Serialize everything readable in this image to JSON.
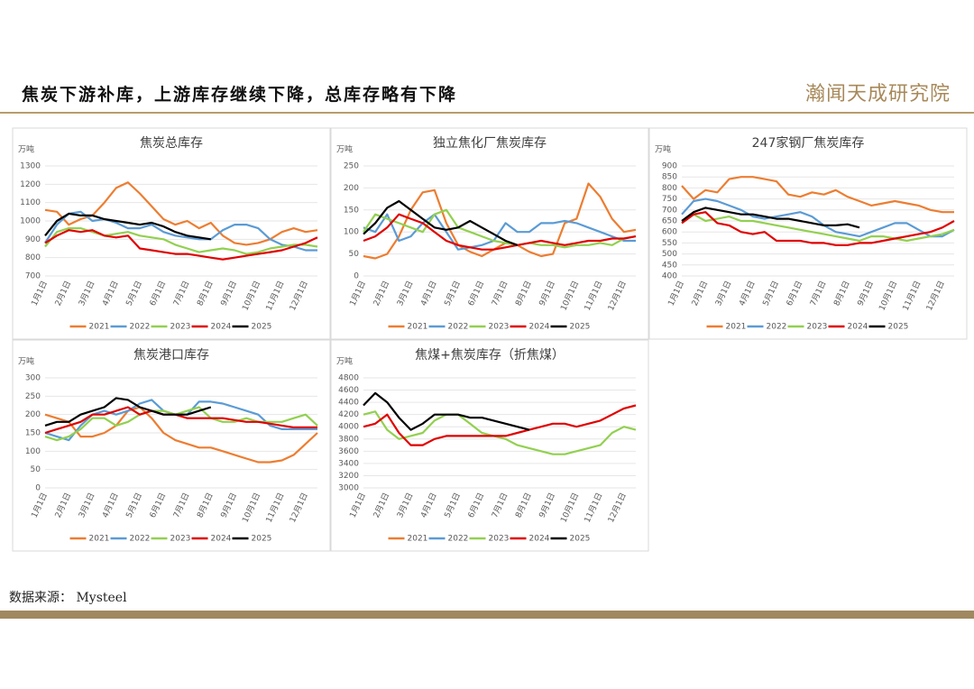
{
  "header": {
    "title": "焦炭下游补库，上游库存继续下降，总库存略有下降",
    "logo": "瀚闻天成研究院"
  },
  "source": "数据来源： Mysteel",
  "chart_data": [
    {
      "type": "line",
      "title": "焦炭总库存",
      "y_unit": "万吨",
      "categories": [
        "1月1日",
        null,
        "2月1日",
        null,
        "3月1日",
        null,
        "4月1日",
        null,
        "5月1日",
        null,
        "6月1日",
        null,
        "7月1日",
        null,
        "8月1日",
        null,
        "9月1日",
        null,
        "10月1日",
        null,
        "11月1日",
        null,
        "12月1日",
        null
      ],
      "ylim": [
        700,
        1300
      ],
      "yticks": [
        700,
        800,
        900,
        1000,
        1100,
        1200,
        1300
      ],
      "series": [
        {
          "name": "2021",
          "color": "#ed7d31",
          "values": [
            1060,
            1050,
            980,
            1010,
            1030,
            1100,
            1180,
            1210,
            1150,
            1080,
            1010,
            980,
            1000,
            960,
            990,
            920,
            880,
            870,
            880,
            900,
            940,
            960,
            940,
            950
          ]
        },
        {
          "name": "2022",
          "color": "#5b9bd5",
          "values": [
            880,
            980,
            1040,
            1050,
            1000,
            1010,
            990,
            960,
            960,
            980,
            940,
            920,
            910,
            900,
            900,
            950,
            980,
            980,
            960,
            900,
            870,
            860,
            840,
            840
          ]
        },
        {
          "name": "2023",
          "color": "#92d050",
          "values": [
            860,
            940,
            960,
            960,
            940,
            920,
            930,
            940,
            920,
            910,
            900,
            870,
            850,
            830,
            840,
            850,
            840,
            820,
            830,
            850,
            860,
            870,
            870,
            860
          ]
        },
        {
          "name": "2024",
          "color": "#e00000",
          "values": [
            880,
            920,
            950,
            940,
            950,
            920,
            910,
            920,
            850,
            840,
            830,
            820,
            820,
            810,
            800,
            790,
            800,
            810,
            820,
            830,
            840,
            860,
            880,
            910
          ]
        },
        {
          "name": "2025",
          "color": "#000000",
          "values": [
            920,
            1000,
            1040,
            1030,
            1030,
            1010,
            1000,
            990,
            980,
            990,
            970,
            940,
            920,
            910,
            900,
            null,
            null,
            null,
            null,
            null,
            null,
            null,
            null,
            null
          ]
        }
      ]
    },
    {
      "type": "line",
      "title": "独立焦化厂焦炭库存",
      "y_unit": "万吨",
      "categories": [
        "1月1日",
        null,
        "2月1日",
        null,
        "3月1日",
        null,
        "4月1日",
        null,
        "5月1日",
        null,
        "6月1日",
        null,
        "7月1日",
        null,
        "8月1日",
        null,
        "9月1日",
        null,
        "10月1日",
        null,
        "11月1日",
        null,
        "12月1日",
        null
      ],
      "ylim": [
        0,
        250
      ],
      "yticks": [
        0,
        50,
        100,
        150,
        200,
        250
      ],
      "series": [
        {
          "name": "2021",
          "color": "#ed7d31",
          "values": [
            45,
            40,
            50,
            90,
            150,
            190,
            195,
            120,
            70,
            55,
            45,
            60,
            75,
            70,
            55,
            45,
            50,
            120,
            130,
            210,
            180,
            130,
            100,
            105
          ]
        },
        {
          "name": "2022",
          "color": "#5b9bd5",
          "values": [
            110,
            100,
            140,
            80,
            90,
            120,
            140,
            100,
            60,
            65,
            70,
            80,
            120,
            100,
            100,
            120,
            120,
            125,
            120,
            110,
            100,
            90,
            80,
            80
          ]
        },
        {
          "name": "2023",
          "color": "#92d050",
          "values": [
            100,
            140,
            130,
            120,
            110,
            100,
            140,
            150,
            110,
            100,
            90,
            80,
            75,
            70,
            75,
            70,
            70,
            65,
            70,
            70,
            75,
            70,
            85,
            90
          ]
        },
        {
          "name": "2024",
          "color": "#e00000",
          "values": [
            80,
            90,
            110,
            140,
            130,
            120,
            100,
            80,
            70,
            65,
            60,
            60,
            65,
            70,
            75,
            80,
            75,
            70,
            75,
            80,
            80,
            85,
            85,
            90
          ]
        },
        {
          "name": "2025",
          "color": "#000000",
          "values": [
            95,
            120,
            155,
            170,
            150,
            130,
            110,
            105,
            110,
            125,
            110,
            95,
            80,
            70,
            null,
            null,
            null,
            null,
            null,
            null,
            null,
            null,
            null,
            null
          ]
        }
      ]
    },
    {
      "type": "line",
      "title": "247家钢厂焦炭库存",
      "y_unit": "万吨",
      "categories": [
        "1月1日",
        null,
        "2月1日",
        null,
        "3月1日",
        null,
        "4月1日",
        null,
        "5月1日",
        null,
        "6月1日",
        null,
        "7月1日",
        null,
        "8月1日",
        null,
        "9月1日",
        null,
        "10月1日",
        null,
        "11月1日",
        null,
        "12月1日",
        null
      ],
      "ylim": [
        400,
        900
      ],
      "yticks": [
        400,
        450,
        500,
        550,
        600,
        650,
        700,
        750,
        800,
        850,
        900
      ],
      "series": [
        {
          "name": "2021",
          "color": "#ed7d31",
          "values": [
            810,
            750,
            790,
            780,
            840,
            850,
            850,
            840,
            830,
            770,
            760,
            780,
            770,
            790,
            760,
            740,
            720,
            730,
            740,
            730,
            720,
            700,
            690,
            690
          ]
        },
        {
          "name": "2022",
          "color": "#5b9bd5",
          "values": [
            680,
            740,
            750,
            740,
            720,
            700,
            670,
            660,
            670,
            680,
            690,
            670,
            630,
            600,
            590,
            580,
            600,
            620,
            640,
            640,
            610,
            580,
            580,
            610
          ]
        },
        {
          "name": "2023",
          "color": "#92d050",
          "values": [
            640,
            680,
            650,
            660,
            670,
            650,
            650,
            640,
            630,
            620,
            610,
            600,
            590,
            580,
            570,
            560,
            580,
            580,
            570,
            560,
            570,
            580,
            590,
            610
          ]
        },
        {
          "name": "2024",
          "color": "#e00000",
          "values": [
            640,
            680,
            690,
            640,
            630,
            600,
            590,
            600,
            560,
            560,
            560,
            550,
            550,
            540,
            540,
            550,
            550,
            560,
            570,
            580,
            590,
            600,
            620,
            650
          ]
        },
        {
          "name": "2025",
          "color": "#000000",
          "values": [
            650,
            690,
            710,
            700,
            690,
            680,
            680,
            670,
            660,
            660,
            650,
            640,
            630,
            630,
            635,
            620,
            null,
            null,
            null,
            null,
            null,
            null,
            null,
            null
          ]
        }
      ]
    },
    {
      "type": "line",
      "title": "焦炭港口库存",
      "y_unit": "万吨",
      "categories": [
        "1月1日",
        null,
        "2月1日",
        null,
        "3月1日",
        null,
        "4月1日",
        null,
        "5月1日",
        null,
        "6月1日",
        null,
        "7月1日",
        null,
        "8月1日",
        null,
        "9月1日",
        null,
        "10月1日",
        null,
        "11月1日",
        null,
        "12月1日",
        null
      ],
      "ylim": [
        0,
        300
      ],
      "yticks": [
        0,
        50,
        100,
        150,
        200,
        250,
        300
      ],
      "series": [
        {
          "name": "2021",
          "color": "#ed7d31",
          "values": [
            200,
            190,
            180,
            140,
            140,
            150,
            170,
            210,
            220,
            190,
            150,
            130,
            120,
            110,
            110,
            100,
            90,
            80,
            70,
            70,
            75,
            90,
            120,
            150
          ]
        },
        {
          "name": "2022",
          "color": "#5b9bd5",
          "values": [
            150,
            140,
            130,
            170,
            200,
            210,
            200,
            210,
            230,
            240,
            210,
            200,
            200,
            235,
            235,
            230,
            220,
            210,
            200,
            170,
            160,
            160,
            160,
            160
          ]
        },
        {
          "name": "2023",
          "color": "#92d050",
          "values": [
            140,
            130,
            140,
            160,
            190,
            190,
            170,
            180,
            200,
            210,
            210,
            200,
            210,
            220,
            190,
            180,
            180,
            190,
            180,
            180,
            180,
            190,
            200,
            170
          ]
        },
        {
          "name": "2024",
          "color": "#e00000",
          "values": [
            150,
            160,
            170,
            180,
            200,
            200,
            210,
            220,
            200,
            210,
            200,
            200,
            190,
            190,
            190,
            190,
            185,
            180,
            180,
            175,
            170,
            165,
            165,
            165
          ]
        },
        {
          "name": "2025",
          "color": "#000000",
          "values": [
            170,
            180,
            180,
            200,
            210,
            220,
            245,
            240,
            220,
            210,
            200,
            200,
            200,
            210,
            220,
            null,
            null,
            null,
            null,
            null,
            null,
            null,
            null,
            null
          ]
        }
      ]
    },
    {
      "type": "line",
      "title": "焦煤+焦炭库存（折焦煤）",
      "y_unit": "万吨",
      "categories": [
        "1月1日",
        null,
        "2月1日",
        null,
        "3月1日",
        null,
        "4月1日",
        null,
        "5月1日",
        null,
        "6月1日",
        null,
        "7月1日",
        null,
        "8月1日",
        null,
        "9月1日",
        null,
        "10月1日",
        null,
        "11月1日",
        null,
        "12月1日",
        null
      ],
      "ylim": [
        3000,
        4800
      ],
      "yticks": [
        3000,
        3200,
        3400,
        3600,
        3800,
        4000,
        4200,
        4400,
        4600,
        4800
      ],
      "series": [
        {
          "name": "2021",
          "color": "#ed7d31",
          "values": [
            null,
            null,
            null,
            null,
            null,
            null,
            null,
            null,
            null,
            null,
            null,
            null,
            null,
            null,
            null,
            null,
            null,
            null,
            null,
            null,
            null,
            null,
            null,
            null
          ]
        },
        {
          "name": "2022",
          "color": "#5b9bd5",
          "values": [
            null,
            null,
            null,
            null,
            null,
            null,
            null,
            null,
            null,
            null,
            null,
            null,
            null,
            null,
            null,
            null,
            null,
            null,
            null,
            null,
            null,
            null,
            null,
            null
          ]
        },
        {
          "name": "2023",
          "color": "#92d050",
          "values": [
            4200,
            4250,
            3950,
            3800,
            3850,
            3900,
            4100,
            4200,
            4200,
            4050,
            3900,
            3850,
            3800,
            3700,
            3650,
            3600,
            3550,
            3550,
            3600,
            3650,
            3700,
            3900,
            4000,
            3950
          ]
        },
        {
          "name": "2024",
          "color": "#e00000",
          "values": [
            4000,
            4050,
            4200,
            3900,
            3700,
            3700,
            3800,
            3850,
            3850,
            3850,
            3850,
            3850,
            3850,
            3900,
            3950,
            4000,
            4050,
            4050,
            4000,
            4050,
            4100,
            4200,
            4300,
            4350
          ]
        },
        {
          "name": "2025",
          "color": "#000000",
          "values": [
            4350,
            4550,
            4400,
            4150,
            3950,
            4050,
            4200,
            4200,
            4200,
            4150,
            4150,
            4100,
            4050,
            4000,
            3950,
            null,
            null,
            null,
            null,
            null,
            null,
            null,
            null,
            null
          ]
        }
      ]
    }
  ]
}
